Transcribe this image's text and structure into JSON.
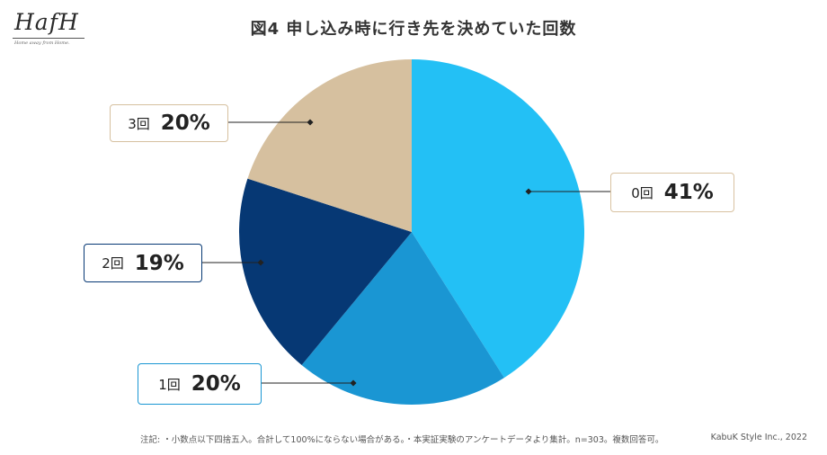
{
  "logo": {
    "text": "HafH",
    "tagline": "Home away from Home."
  },
  "chart_data": {
    "type": "pie",
    "title": "図4 申し込み時に行き先を決めていた回数",
    "slices": [
      {
        "label": "0回",
        "value": 41,
        "percent_label": "41%",
        "color": "#23C0F5",
        "border": "#D8C2A1"
      },
      {
        "label": "1回",
        "value": 20,
        "percent_label": "20%",
        "color": "#1A96D3",
        "border": "#1A96D3"
      },
      {
        "label": "2回",
        "value": 19,
        "percent_label": "19%",
        "color": "#063874",
        "border": "#063874"
      },
      {
        "label": "3回",
        "value": 20,
        "percent_label": "20%",
        "color": "#D6C09F",
        "border": "#D6C09F"
      }
    ],
    "start": "12 o'clock",
    "direction": "clockwise",
    "legend": "none"
  },
  "footnote": "注記: ・小数点以下四捨五入。合計して100%にならない場合がある。・本実証実験のアンケートデータより集計。n=303。複数回答可。",
  "credit": "KabuK Style Inc., 2022"
}
